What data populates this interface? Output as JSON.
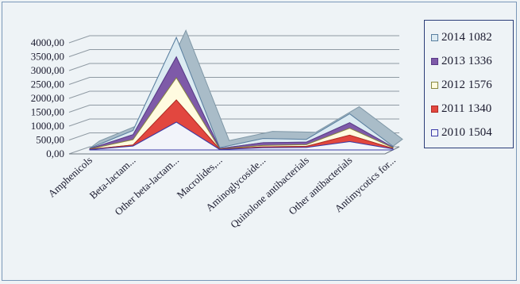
{
  "chart_data": {
    "type": "area",
    "title": "",
    "xlabel": "",
    "ylabel": "",
    "ylim": [
      0,
      4000
    ],
    "yticks": [
      "4000,00",
      "3500,00",
      "3000,00",
      "2500,00",
      "2000,00",
      "1500,00",
      "1000,00",
      "500,00",
      "0,00"
    ],
    "categories": [
      "Amphenicols",
      "Beta-lactam...",
      "Other beta-lactam...",
      "Macrolides,...",
      "Aminoglycoside...",
      "Quinolone antibacterials",
      "Other antibacterials",
      "Antimycotics for..."
    ],
    "series": [
      {
        "name": "2010 1504",
        "values": [
          10,
          140,
          1000,
          15,
          80,
          90,
          300,
          35
        ],
        "color": "#f2f4fa",
        "stroke": "#3a3aa8"
      },
      {
        "name": "2011 1340",
        "values": [
          10,
          40,
          800,
          10,
          30,
          40,
          230,
          20
        ],
        "color": "#e2473f",
        "stroke": "#b02a24"
      },
      {
        "name": "2012 1576",
        "values": [
          10,
          190,
          800,
          10,
          50,
          60,
          250,
          25
        ],
        "color": "#fffbe0",
        "stroke": "#8a8a40"
      },
      {
        "name": "2013 1336",
        "values": [
          10,
          180,
          750,
          15,
          100,
          90,
          200,
          20
        ],
        "color": "#7e5aa8",
        "stroke": "#5a3a88"
      },
      {
        "name": "2014 1082",
        "values": [
          20,
          150,
          700,
          30,
          150,
          100,
          320,
          30
        ],
        "color": "#dcebf2",
        "stroke": "#5a7fa0"
      }
    ],
    "legend_position": "right",
    "grid": true
  }
}
